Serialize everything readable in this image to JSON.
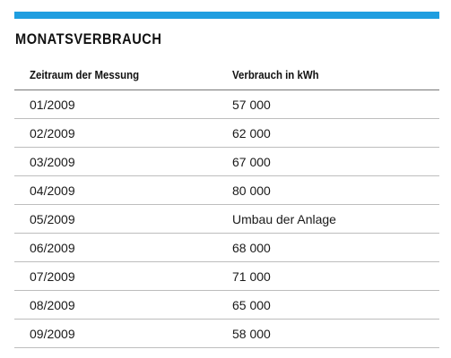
{
  "title": "MONATSVERBRAUCH",
  "colors": {
    "accent_bar": "#1f9ee0"
  },
  "table": {
    "headers": [
      "Zeitraum der Messung",
      "Verbrauch in kWh"
    ],
    "rows": [
      {
        "period": "01/2009",
        "value": "57 000"
      },
      {
        "period": "02/2009",
        "value": "62 000"
      },
      {
        "period": "03/2009",
        "value": "67 000"
      },
      {
        "period": "04/2009",
        "value": "80 000"
      },
      {
        "period": "05/2009",
        "value": "Umbau der Anlage"
      },
      {
        "period": "06/2009",
        "value": "68 000"
      },
      {
        "period": "07/2009",
        "value": "71 000"
      },
      {
        "period": "08/2009",
        "value": "65 000"
      },
      {
        "period": "09/2009",
        "value": "58 000"
      }
    ]
  }
}
